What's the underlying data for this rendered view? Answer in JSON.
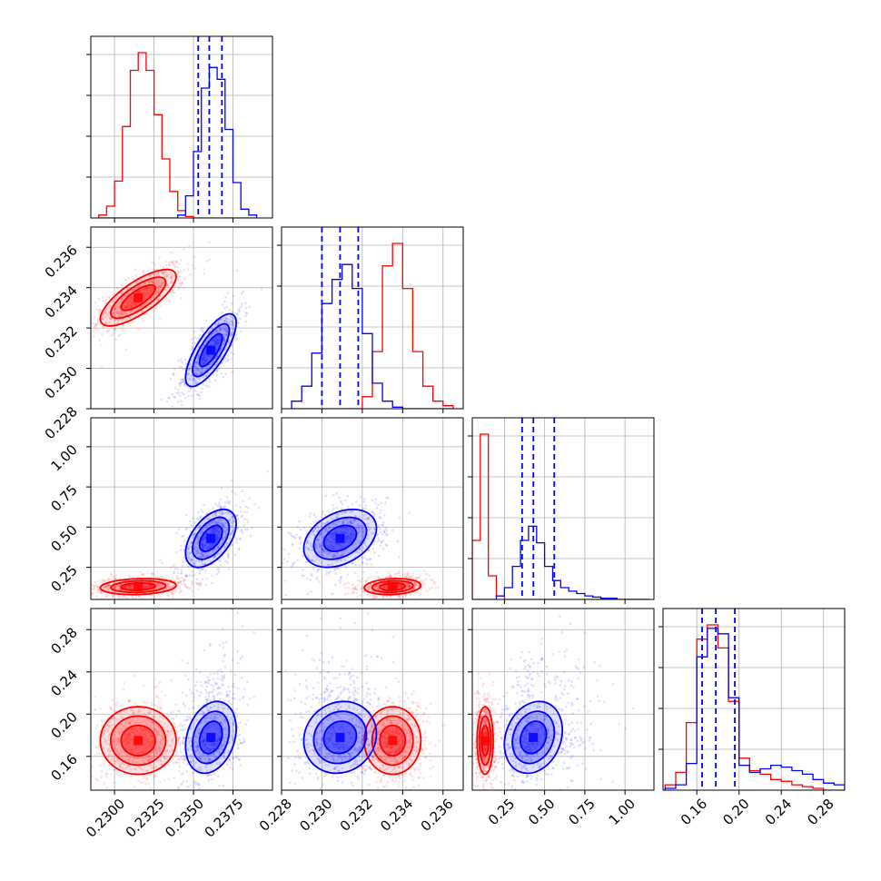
{
  "chart_data": {
    "type": "corner",
    "series_colors": {
      "red": "#ff0000",
      "blue": "#0000ff"
    },
    "params": [
      {
        "lim": [
          0.2285,
          0.24
        ],
        "ticks": [
          0.23,
          0.2325,
          0.235,
          0.2375
        ],
        "tick_labels": [
          "0.2300",
          "0.2325",
          "0.2350",
          "0.2375"
        ]
      },
      {
        "lim": [
          0.228,
          0.237
        ],
        "ticks": [
          0.228,
          0.23,
          0.232,
          0.234,
          0.236
        ],
        "tick_labels": [
          "0.228",
          "0.230",
          "0.232",
          "0.234",
          "0.236"
        ]
      },
      {
        "lim": [
          0.05,
          1.18
        ],
        "ticks": [
          0.25,
          0.5,
          0.75,
          1.0
        ],
        "tick_labels": [
          "0.25",
          "0.50",
          "0.75",
          "1.00"
        ]
      },
      {
        "lim": [
          0.128,
          0.3
        ],
        "ticks": [
          0.16,
          0.2,
          0.24,
          0.28
        ],
        "tick_labels": [
          "0.16",
          "0.20",
          "0.24",
          "0.28"
        ]
      }
    ],
    "red": {
      "mean": [
        0.2315,
        0.2335,
        0.13,
        0.175
      ],
      "sd": [
        0.0012,
        0.0007,
        0.025,
        0.016
      ],
      "corr": {
        "0-1": 0.75,
        "0-2": 0.15,
        "0-3": 0.0,
        "1-2": 0.15,
        "1-3": 0.0,
        "2-3": 0.0
      }
    },
    "blue": {
      "mean": [
        0.2361,
        0.2309,
        0.43,
        0.178
      ],
      "sd": [
        0.0008,
        0.0009,
        0.09,
        0.017
      ],
      "corr": {
        "0-1": 0.75,
        "0-2": 0.5,
        "0-3": 0.25,
        "1-2": 0.35,
        "1-3": 0.1,
        "2-3": 0.2
      }
    },
    "blue_quantiles": [
      [
        0.2353,
        0.236,
        0.2368
      ],
      [
        0.23,
        0.2309,
        0.2318
      ],
      [
        0.36,
        0.43,
        0.56
      ],
      [
        0.165,
        0.178,
        0.196
      ]
    ],
    "histograms": [
      {
        "bin_edges": [
          0.229,
          0.2295,
          0.23,
          0.2305,
          0.231,
          0.2315,
          0.232,
          0.2325,
          0.233,
          0.2335,
          0.234,
          0.2345,
          0.235,
          0.2355,
          0.236,
          0.2365,
          0.237,
          0.2375,
          0.238,
          0.2385,
          0.239
        ],
        "red": [
          2,
          8,
          25,
          62,
          100,
          112,
          100,
          70,
          40,
          18,
          5,
          1,
          0,
          0,
          0,
          0,
          0,
          0,
          0,
          0
        ],
        "blue": [
          0,
          0,
          0,
          0,
          0,
          0,
          0,
          0,
          0,
          0,
          2,
          15,
          45,
          88,
          102,
          94,
          60,
          24,
          6,
          2
        ]
      },
      {
        "bin_edges": [
          0.2285,
          0.229,
          0.2295,
          0.23,
          0.2305,
          0.231,
          0.2315,
          0.232,
          0.2325,
          0.233,
          0.2335,
          0.234,
          0.2345,
          0.235,
          0.2355,
          0.236,
          0.2365
        ],
        "blue": [
          5,
          15,
          37,
          70,
          86,
          96,
          80,
          50,
          17,
          5,
          1,
          0,
          0,
          0,
          0,
          0
        ],
        "red": [
          0,
          0,
          0,
          0,
          0,
          0,
          0,
          8,
          38,
          95,
          110,
          80,
          38,
          15,
          5,
          2
        ]
      },
      {
        "bin_edges": [
          0.05,
          0.1,
          0.15,
          0.2,
          0.25,
          0.3,
          0.35,
          0.4,
          0.45,
          0.5,
          0.55,
          0.6,
          0.65,
          0.7,
          0.75,
          0.8,
          0.85,
          0.9,
          0.95,
          1.0,
          1.05,
          1.1,
          1.15
        ],
        "red": [
          50,
          140,
          20,
          3,
          0,
          0,
          0,
          0,
          0,
          0,
          0,
          0,
          0,
          0,
          0,
          0,
          0,
          0,
          0,
          0,
          0,
          0
        ],
        "blue": [
          0,
          0,
          0,
          3,
          10,
          28,
          50,
          62,
          48,
          28,
          16,
          10,
          7,
          5,
          3,
          2,
          1,
          1,
          0,
          0,
          0,
          0
        ]
      },
      {
        "bin_edges": [
          0.13,
          0.14,
          0.15,
          0.16,
          0.17,
          0.18,
          0.19,
          0.2,
          0.21,
          0.22,
          0.23,
          0.24,
          0.25,
          0.26,
          0.27,
          0.28,
          0.29,
          0.3
        ],
        "red": [
          3,
          10,
          38,
          85,
          93,
          80,
          50,
          18,
          11,
          9,
          6,
          5,
          3,
          2,
          1,
          0,
          0
        ],
        "blue": [
          1,
          3,
          15,
          75,
          91,
          88,
          52,
          14,
          10,
          12,
          14,
          13,
          11,
          9,
          6,
          4,
          3
        ]
      }
    ]
  }
}
